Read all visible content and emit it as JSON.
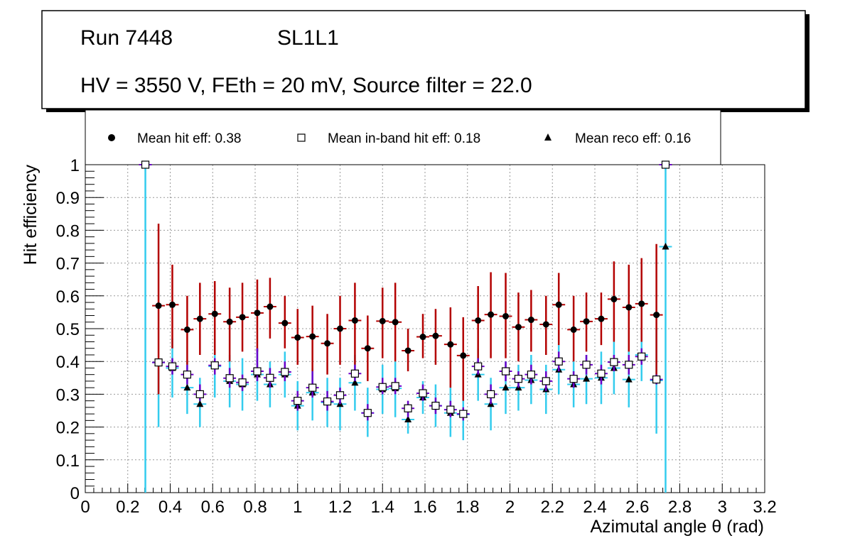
{
  "header": {
    "run": "Run 7448",
    "layer": "SL1L1",
    "settings": "HV = 3550 V, FEth = 20 mV, Source filter = 22.0"
  },
  "colors": {
    "hit": "#b30000",
    "inband": "#6a00c8",
    "reco": "#33ccee",
    "grid": "#999999",
    "axis": "#000000"
  },
  "chart_data": {
    "type": "scatter",
    "xlabel": "Azimutal angle θ (rad)",
    "ylabel": "Hit efficiency",
    "xlim": [
      0,
      3.2
    ],
    "ylim": [
      0,
      1
    ],
    "grid": true,
    "legend_position": "top",
    "x_ticks": [
      "0",
      "0.2",
      "0.4",
      "0.6",
      "0.8",
      "1",
      "1.2",
      "1.4",
      "1.6",
      "1.8",
      "2",
      "2.2",
      "2.4",
      "2.6",
      "2.8",
      "3",
      "3.2"
    ],
    "y_ticks": [
      "0",
      "0.1",
      "0.2",
      "0.3",
      "0.4",
      "0.5",
      "0.6",
      "0.7",
      "0.8",
      "0.9",
      "1"
    ],
    "x_half_width": 0.03,
    "series": [
      {
        "name": "Mean hit  eff: 0.38",
        "marker": "circle",
        "points": [
          {
            "x": 0.283,
            "y": 1.0,
            "lo": 1.0,
            "hi": 1.0
          },
          {
            "x": 0.345,
            "y": 0.57,
            "lo": 0.3,
            "hi": 0.82
          },
          {
            "x": 0.41,
            "y": 0.573,
            "lo": 0.44,
            "hi": 0.695
          },
          {
            "x": 0.48,
            "y": 0.497,
            "lo": 0.39,
            "hi": 0.6
          },
          {
            "x": 0.54,
            "y": 0.53,
            "lo": 0.42,
            "hi": 0.64
          },
          {
            "x": 0.61,
            "y": 0.545,
            "lo": 0.42,
            "hi": 0.645
          },
          {
            "x": 0.68,
            "y": 0.521,
            "lo": 0.4,
            "hi": 0.625
          },
          {
            "x": 0.74,
            "y": 0.535,
            "lo": 0.43,
            "hi": 0.64
          },
          {
            "x": 0.81,
            "y": 0.548,
            "lo": 0.43,
            "hi": 0.65
          },
          {
            "x": 0.87,
            "y": 0.567,
            "lo": 0.47,
            "hi": 0.655
          },
          {
            "x": 0.94,
            "y": 0.517,
            "lo": 0.44,
            "hi": 0.6
          },
          {
            "x": 1.0,
            "y": 0.473,
            "lo": 0.39,
            "hi": 0.56
          },
          {
            "x": 1.07,
            "y": 0.476,
            "lo": 0.37,
            "hi": 0.57
          },
          {
            "x": 1.14,
            "y": 0.455,
            "lo": 0.36,
            "hi": 0.545
          },
          {
            "x": 1.2,
            "y": 0.5,
            "lo": 0.39,
            "hi": 0.6
          },
          {
            "x": 1.27,
            "y": 0.525,
            "lo": 0.39,
            "hi": 0.64
          },
          {
            "x": 1.33,
            "y": 0.44,
            "lo": 0.34,
            "hi": 0.54
          },
          {
            "x": 1.4,
            "y": 0.523,
            "lo": 0.41,
            "hi": 0.625
          },
          {
            "x": 1.46,
            "y": 0.52,
            "lo": 0.4,
            "hi": 0.64
          },
          {
            "x": 1.52,
            "y": 0.433,
            "lo": 0.37,
            "hi": 0.5
          },
          {
            "x": 1.59,
            "y": 0.475,
            "lo": 0.41,
            "hi": 0.545
          },
          {
            "x": 1.65,
            "y": 0.478,
            "lo": 0.39,
            "hi": 0.56
          },
          {
            "x": 1.72,
            "y": 0.452,
            "lo": 0.32,
            "hi": 0.565
          },
          {
            "x": 1.78,
            "y": 0.418,
            "lo": 0.28,
            "hi": 0.535
          },
          {
            "x": 1.85,
            "y": 0.525,
            "lo": 0.4,
            "hi": 0.63
          },
          {
            "x": 1.91,
            "y": 0.543,
            "lo": 0.41,
            "hi": 0.672
          },
          {
            "x": 1.98,
            "y": 0.538,
            "lo": 0.41,
            "hi": 0.67
          },
          {
            "x": 2.04,
            "y": 0.505,
            "lo": 0.4,
            "hi": 0.61
          },
          {
            "x": 2.1,
            "y": 0.527,
            "lo": 0.43,
            "hi": 0.618
          },
          {
            "x": 2.17,
            "y": 0.513,
            "lo": 0.42,
            "hi": 0.6
          },
          {
            "x": 2.23,
            "y": 0.573,
            "lo": 0.45,
            "hi": 0.67
          },
          {
            "x": 2.3,
            "y": 0.497,
            "lo": 0.4,
            "hi": 0.6
          },
          {
            "x": 2.36,
            "y": 0.522,
            "lo": 0.43,
            "hi": 0.61
          },
          {
            "x": 2.43,
            "y": 0.53,
            "lo": 0.45,
            "hi": 0.61
          },
          {
            "x": 2.49,
            "y": 0.59,
            "lo": 0.46,
            "hi": 0.705
          },
          {
            "x": 2.56,
            "y": 0.565,
            "lo": 0.43,
            "hi": 0.695
          },
          {
            "x": 2.62,
            "y": 0.576,
            "lo": 0.46,
            "hi": 0.715
          },
          {
            "x": 2.69,
            "y": 0.542,
            "lo": 0.34,
            "hi": 0.758
          },
          {
            "x": 2.733,
            "y": 1.0,
            "lo": 1.0,
            "hi": 1.0
          }
        ]
      },
      {
        "name": "Mean in-band hit eff: 0.18",
        "marker": "open-square",
        "points": [
          {
            "x": 0.283,
            "y": 1.0,
            "lo": 1.0,
            "hi": 1.0
          },
          {
            "x": 0.345,
            "y": 0.397,
            "lo": 0.39,
            "hi": 0.4
          },
          {
            "x": 0.41,
            "y": 0.385,
            "lo": 0.36,
            "hi": 0.41
          },
          {
            "x": 0.48,
            "y": 0.36,
            "lo": 0.33,
            "hi": 0.39
          },
          {
            "x": 0.54,
            "y": 0.3,
            "lo": 0.28,
            "hi": 0.33
          },
          {
            "x": 0.61,
            "y": 0.388,
            "lo": 0.36,
            "hi": 0.41
          },
          {
            "x": 0.68,
            "y": 0.349,
            "lo": 0.32,
            "hi": 0.38
          },
          {
            "x": 0.74,
            "y": 0.336,
            "lo": 0.31,
            "hi": 0.36
          },
          {
            "x": 0.81,
            "y": 0.37,
            "lo": 0.34,
            "hi": 0.44
          },
          {
            "x": 0.87,
            "y": 0.35,
            "lo": 0.32,
            "hi": 0.38
          },
          {
            "x": 0.94,
            "y": 0.368,
            "lo": 0.34,
            "hi": 0.4
          },
          {
            "x": 1.0,
            "y": 0.28,
            "lo": 0.25,
            "hi": 0.31
          },
          {
            "x": 1.07,
            "y": 0.32,
            "lo": 0.29,
            "hi": 0.37
          },
          {
            "x": 1.14,
            "y": 0.278,
            "lo": 0.25,
            "hi": 0.31
          },
          {
            "x": 1.2,
            "y": 0.297,
            "lo": 0.27,
            "hi": 0.32
          },
          {
            "x": 1.27,
            "y": 0.363,
            "lo": 0.34,
            "hi": 0.39
          },
          {
            "x": 1.33,
            "y": 0.243,
            "lo": 0.22,
            "hi": 0.27
          },
          {
            "x": 1.4,
            "y": 0.322,
            "lo": 0.3,
            "hi": 0.35
          },
          {
            "x": 1.46,
            "y": 0.325,
            "lo": 0.3,
            "hi": 0.35
          },
          {
            "x": 1.52,
            "y": 0.257,
            "lo": 0.23,
            "hi": 0.28
          },
          {
            "x": 1.59,
            "y": 0.303,
            "lo": 0.28,
            "hi": 0.33
          },
          {
            "x": 1.65,
            "y": 0.265,
            "lo": 0.24,
            "hi": 0.29
          },
          {
            "x": 1.72,
            "y": 0.253,
            "lo": 0.23,
            "hi": 0.28
          },
          {
            "x": 1.78,
            "y": 0.24,
            "lo": 0.22,
            "hi": 0.26
          },
          {
            "x": 1.85,
            "y": 0.385,
            "lo": 0.36,
            "hi": 0.41
          },
          {
            "x": 1.91,
            "y": 0.3,
            "lo": 0.27,
            "hi": 0.33
          },
          {
            "x": 1.98,
            "y": 0.37,
            "lo": 0.34,
            "hi": 0.4
          },
          {
            "x": 2.04,
            "y": 0.347,
            "lo": 0.32,
            "hi": 0.37
          },
          {
            "x": 2.1,
            "y": 0.36,
            "lo": 0.33,
            "hi": 0.39
          },
          {
            "x": 2.17,
            "y": 0.34,
            "lo": 0.31,
            "hi": 0.37
          },
          {
            "x": 2.23,
            "y": 0.4,
            "lo": 0.37,
            "hi": 0.43
          },
          {
            "x": 2.3,
            "y": 0.347,
            "lo": 0.32,
            "hi": 0.37
          },
          {
            "x": 2.36,
            "y": 0.39,
            "lo": 0.36,
            "hi": 0.42
          },
          {
            "x": 2.43,
            "y": 0.363,
            "lo": 0.33,
            "hi": 0.39
          },
          {
            "x": 2.49,
            "y": 0.398,
            "lo": 0.37,
            "hi": 0.42
          },
          {
            "x": 2.56,
            "y": 0.39,
            "lo": 0.36,
            "hi": 0.42
          },
          {
            "x": 2.62,
            "y": 0.415,
            "lo": 0.39,
            "hi": 0.44
          },
          {
            "x": 2.69,
            "y": 0.345,
            "lo": 0.33,
            "hi": 0.36
          },
          {
            "x": 2.733,
            "y": 1.0,
            "lo": 1.0,
            "hi": 1.0
          }
        ]
      },
      {
        "name": "Mean reco eff: 0.16",
        "marker": "triangle",
        "points": [
          {
            "x": 0.283,
            "y": 1.0,
            "lo": 0.0,
            "hi": 1.0
          },
          {
            "x": 0.345,
            "y": 0.397,
            "lo": 0.2,
            "hi": 0.4
          },
          {
            "x": 0.41,
            "y": 0.38,
            "lo": 0.29,
            "hi": 0.47
          },
          {
            "x": 0.48,
            "y": 0.32,
            "lo": 0.24,
            "hi": 0.4
          },
          {
            "x": 0.54,
            "y": 0.27,
            "lo": 0.2,
            "hi": 0.35
          },
          {
            "x": 0.61,
            "y": 0.385,
            "lo": 0.29,
            "hi": 0.47
          },
          {
            "x": 0.68,
            "y": 0.34,
            "lo": 0.26,
            "hi": 0.42
          },
          {
            "x": 0.74,
            "y": 0.33,
            "lo": 0.25,
            "hi": 0.41
          },
          {
            "x": 0.81,
            "y": 0.36,
            "lo": 0.28,
            "hi": 0.44
          },
          {
            "x": 0.87,
            "y": 0.33,
            "lo": 0.26,
            "hi": 0.4
          },
          {
            "x": 0.94,
            "y": 0.36,
            "lo": 0.29,
            "hi": 0.43
          },
          {
            "x": 1.0,
            "y": 0.265,
            "lo": 0.19,
            "hi": 0.34
          },
          {
            "x": 1.07,
            "y": 0.305,
            "lo": 0.22,
            "hi": 0.38
          },
          {
            "x": 1.14,
            "y": 0.275,
            "lo": 0.2,
            "hi": 0.35
          },
          {
            "x": 1.2,
            "y": 0.27,
            "lo": 0.19,
            "hi": 0.35
          },
          {
            "x": 1.27,
            "y": 0.335,
            "lo": 0.25,
            "hi": 0.42
          },
          {
            "x": 1.33,
            "y": 0.243,
            "lo": 0.17,
            "hi": 0.32
          },
          {
            "x": 1.4,
            "y": 0.315,
            "lo": 0.24,
            "hi": 0.39
          },
          {
            "x": 1.46,
            "y": 0.318,
            "lo": 0.23,
            "hi": 0.4
          },
          {
            "x": 1.52,
            "y": 0.223,
            "lo": 0.18,
            "hi": 0.27
          },
          {
            "x": 1.59,
            "y": 0.29,
            "lo": 0.24,
            "hi": 0.34
          },
          {
            "x": 1.65,
            "y": 0.265,
            "lo": 0.2,
            "hi": 0.33
          },
          {
            "x": 1.72,
            "y": 0.243,
            "lo": 0.17,
            "hi": 0.32
          },
          {
            "x": 1.78,
            "y": 0.238,
            "lo": 0.16,
            "hi": 0.32
          },
          {
            "x": 1.85,
            "y": 0.36,
            "lo": 0.28,
            "hi": 0.44
          },
          {
            "x": 1.91,
            "y": 0.27,
            "lo": 0.19,
            "hi": 0.35
          },
          {
            "x": 1.98,
            "y": 0.32,
            "lo": 0.24,
            "hi": 0.4
          },
          {
            "x": 2.04,
            "y": 0.32,
            "lo": 0.25,
            "hi": 0.39
          },
          {
            "x": 2.1,
            "y": 0.343,
            "lo": 0.27,
            "hi": 0.42
          },
          {
            "x": 2.17,
            "y": 0.315,
            "lo": 0.24,
            "hi": 0.39
          },
          {
            "x": 2.23,
            "y": 0.375,
            "lo": 0.3,
            "hi": 0.45
          },
          {
            "x": 2.3,
            "y": 0.33,
            "lo": 0.26,
            "hi": 0.4
          },
          {
            "x": 2.36,
            "y": 0.347,
            "lo": 0.27,
            "hi": 0.42
          },
          {
            "x": 2.43,
            "y": 0.35,
            "lo": 0.27,
            "hi": 0.43
          },
          {
            "x": 2.49,
            "y": 0.38,
            "lo": 0.3,
            "hi": 0.46
          },
          {
            "x": 2.56,
            "y": 0.345,
            "lo": 0.26,
            "hi": 0.43
          },
          {
            "x": 2.62,
            "y": 0.42,
            "lo": 0.34,
            "hi": 0.5
          },
          {
            "x": 2.69,
            "y": 0.342,
            "lo": 0.18,
            "hi": 0.5
          },
          {
            "x": 2.733,
            "y": 0.75,
            "lo": 0.0,
            "hi": 1.0
          }
        ]
      }
    ]
  }
}
